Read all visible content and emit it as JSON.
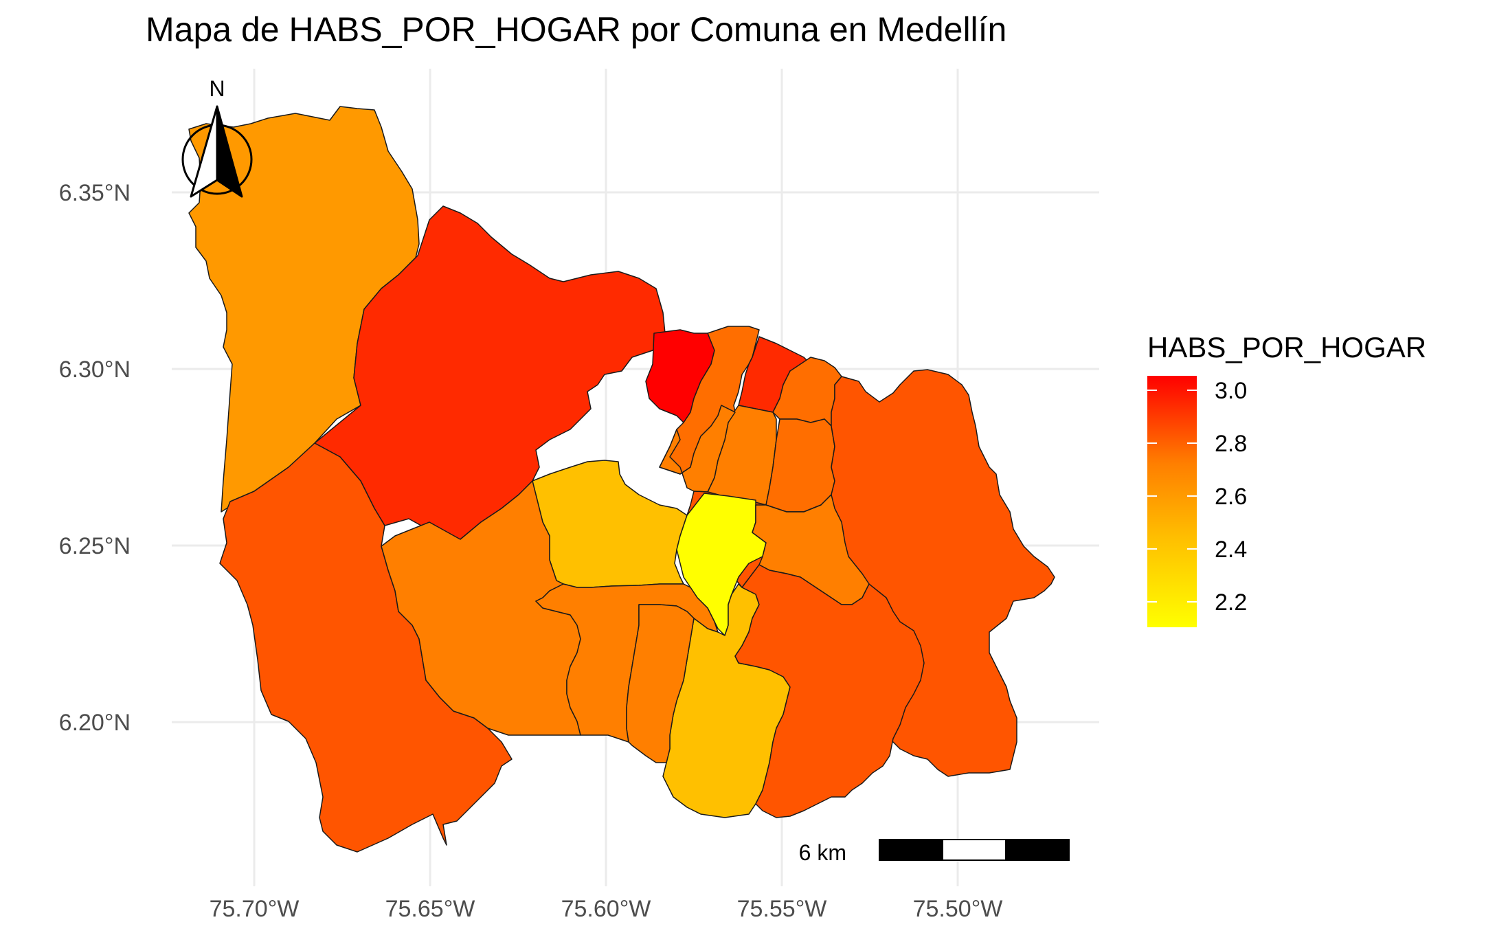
{
  "title": "Mapa de HABS_POR_HOGAR por Comuna en Medellín",
  "axes": {
    "x_ticks": [
      "75.70°W",
      "75.65°W",
      "75.60°W",
      "75.55°W",
      "75.50°W"
    ],
    "y_ticks": [
      "6.35°N",
      "6.30°N",
      "6.25°N",
      "6.20°N"
    ]
  },
  "legend": {
    "title": "HABS_POR_HOGAR",
    "ticks": [
      "3.0",
      "2.8",
      "2.6",
      "2.4",
      "2.2"
    ],
    "color_low": "#ffff00",
    "color_high": "#ff0000"
  },
  "north_arrow": {
    "label": "N"
  },
  "scale_bar": {
    "label": "6 km"
  },
  "colors": {
    "c_orange": "#ff9900",
    "c_red_dark": "#ff2a00",
    "c_red": "#ff0000",
    "c_orange_red": "#ff5500",
    "c_orange_mid": "#ff6e00",
    "c_orange_light": "#ff7f00",
    "c_amber": "#ffc000",
    "c_yellow": "#ffff00"
  },
  "chart_data": {
    "type": "choropleth",
    "variable": "HABS_POR_HOGAR",
    "color_scale": {
      "low": "#ffff00",
      "high": "#ff0000",
      "domain": [
        2.1,
        3.05
      ]
    },
    "regions": [
      {
        "area": "northwest",
        "value": 2.55,
        "color": "#ff9900"
      },
      {
        "area": "north-west central",
        "value": 2.95,
        "color": "#ff2a00"
      },
      {
        "area": "west (southwest)",
        "value": 2.85,
        "color": "#ff5500"
      },
      {
        "area": "north small",
        "value": 3.05,
        "color": "#ff0000"
      },
      {
        "area": "north east 1",
        "value": 2.8,
        "color": "#ff6e00"
      },
      {
        "area": "north east 2",
        "value": 2.95,
        "color": "#ff2a00"
      },
      {
        "area": "north east 3",
        "value": 2.8,
        "color": "#ff6e00"
      },
      {
        "area": "central north 1",
        "value": 2.75,
        "color": "#ff7f00"
      },
      {
        "area": "central north 2",
        "value": 2.75,
        "color": "#ff7f00"
      },
      {
        "area": "central north 3",
        "value": 2.8,
        "color": "#ff6e00"
      },
      {
        "area": "east",
        "value": 2.85,
        "color": "#ff5500"
      },
      {
        "area": "center west",
        "value": 2.45,
        "color": "#ffc000"
      },
      {
        "area": "center",
        "value": 2.1,
        "color": "#ffff00"
      },
      {
        "area": "center east",
        "value": 2.75,
        "color": "#ff7f00"
      },
      {
        "area": "west central",
        "value": 2.75,
        "color": "#ff7f00"
      },
      {
        "area": "south central west",
        "value": 2.75,
        "color": "#ff7f00"
      },
      {
        "area": "south central",
        "value": 2.45,
        "color": "#ffc000"
      },
      {
        "area": "south east",
        "value": 2.85,
        "color": "#ff5500"
      }
    ]
  }
}
